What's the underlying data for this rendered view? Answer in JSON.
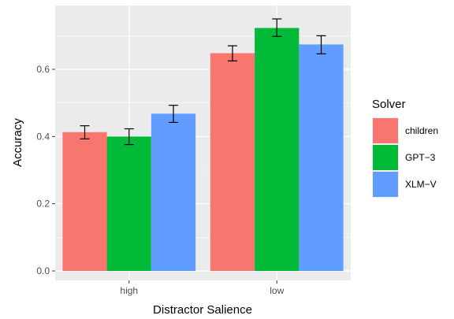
{
  "chart_data": {
    "type": "bar",
    "xlabel": "Distractor Salience",
    "ylabel": "Accuracy",
    "categories": [
      "high",
      "low"
    ],
    "ylim": [
      0,
      0.76
    ],
    "yticks": [
      0.0,
      0.2,
      0.4,
      0.6
    ],
    "ytick_labels": [
      "0.0",
      "0.2",
      "0.4",
      "0.6"
    ],
    "grid": true,
    "legend_title": "Solver",
    "legend_position": "right",
    "series": [
      {
        "name": "children",
        "color": "#F8766D",
        "values": [
          0.413,
          0.648
        ],
        "err_low": [
          0.393,
          0.625
        ],
        "err_high": [
          0.432,
          0.67
        ]
      },
      {
        "name": "GPT−3",
        "color": "#00BA38",
        "values": [
          0.4,
          0.723
        ],
        "err_low": [
          0.376,
          0.698
        ],
        "err_high": [
          0.423,
          0.75
        ]
      },
      {
        "name": "XLM−V",
        "color": "#619CFF",
        "values": [
          0.468,
          0.674
        ],
        "err_low": [
          0.442,
          0.646
        ],
        "err_high": [
          0.493,
          0.7
        ]
      }
    ]
  }
}
